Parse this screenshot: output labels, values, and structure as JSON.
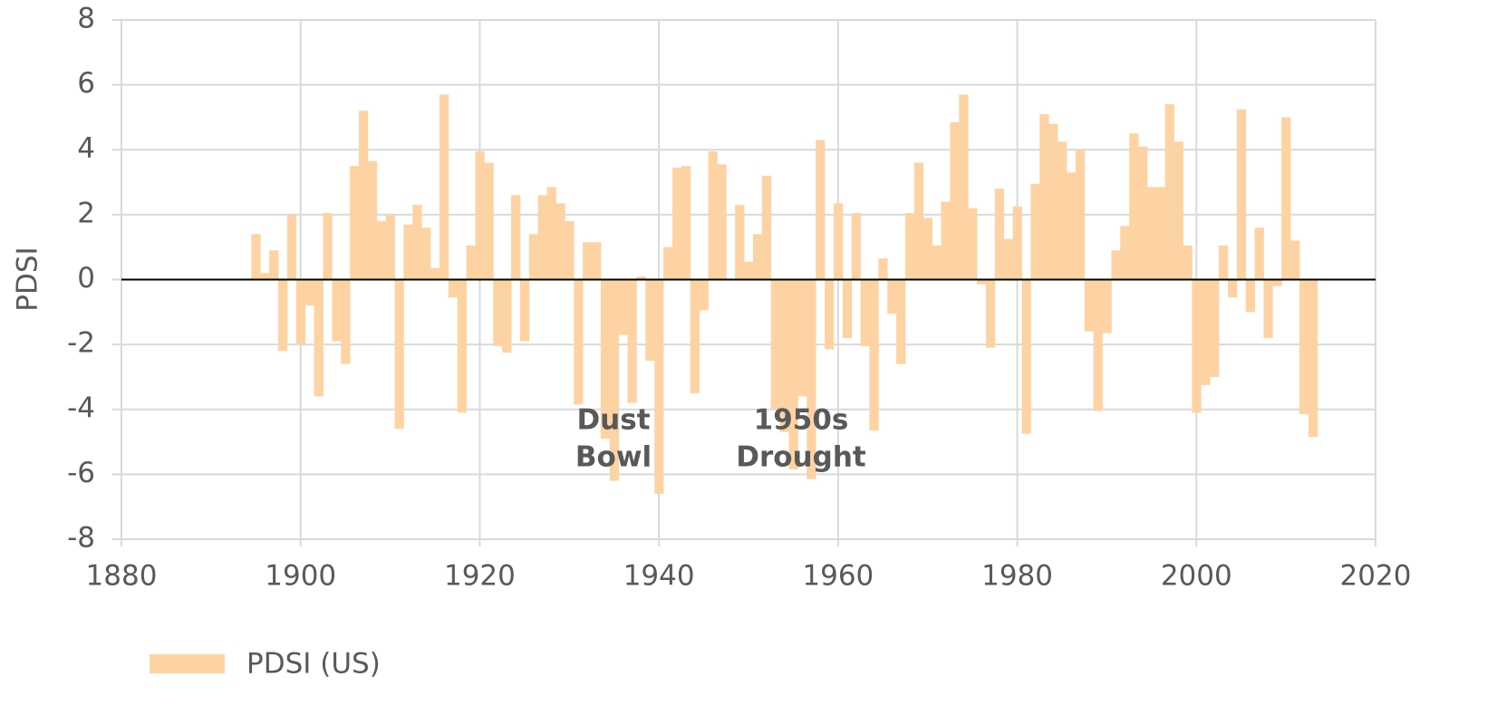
{
  "chart_data": {
    "type": "bar",
    "y_label": "PDSI",
    "annotations": [
      [
        "Dust",
        "Bowl"
      ],
      [
        "1950s",
        "Drought"
      ]
    ],
    "series": [
      {
        "name": "PDSI (US)",
        "color": "#fed3a3",
        "x": [
          1895,
          1896,
          1897,
          1898,
          1899,
          1900,
          1901,
          1902,
          1903,
          1904,
          1905,
          1906,
          1907,
          1908,
          1909,
          1910,
          1911,
          1912,
          1913,
          1914,
          1915,
          1916,
          1917,
          1918,
          1919,
          1920,
          1921,
          1922,
          1923,
          1924,
          1925,
          1926,
          1927,
          1928,
          1929,
          1930,
          1931,
          1932,
          1933,
          1934,
          1935,
          1936,
          1937,
          1938,
          1939,
          1940,
          1941,
          1942,
          1943,
          1944,
          1945,
          1946,
          1947,
          1948,
          1949,
          1950,
          1951,
          1952,
          1953,
          1954,
          1955,
          1956,
          1957,
          1958,
          1959,
          1960,
          1961,
          1962,
          1963,
          1964,
          1965,
          1966,
          1967,
          1968,
          1969,
          1970,
          1971,
          1972,
          1973,
          1974,
          1975,
          1976,
          1977,
          1978,
          1979,
          1980,
          1981,
          1982,
          1983,
          1984,
          1985,
          1986,
          1987,
          1988,
          1989,
          1990,
          1991,
          1992,
          1993,
          1994,
          1995,
          1996,
          1997,
          1998,
          1999,
          2000,
          2001,
          2002,
          2003,
          2004,
          2005,
          2006,
          2007,
          2008,
          2009,
          2010,
          2011,
          2012,
          2013
        ],
        "values": [
          1.4,
          0.2,
          0.9,
          -2.2,
          2.0,
          -2.0,
          -0.8,
          -3.6,
          2.05,
          -1.9,
          -2.6,
          3.5,
          5.2,
          3.65,
          1.8,
          2.0,
          -4.6,
          1.7,
          2.3,
          1.6,
          0.35,
          5.7,
          -0.55,
          -4.1,
          1.05,
          3.95,
          3.6,
          -2.05,
          -2.25,
          2.6,
          -1.9,
          1.4,
          2.6,
          2.85,
          2.35,
          1.8,
          -3.85,
          1.15,
          1.15,
          -4.9,
          -6.2,
          -1.7,
          -3.8,
          0.1,
          -2.5,
          -6.6,
          1.0,
          3.45,
          3.5,
          -3.5,
          -0.95,
          3.95,
          3.55,
          0,
          2.3,
          0.55,
          1.4,
          3.2,
          -4.0,
          -4.7,
          -5.85,
          -3.6,
          -6.15,
          4.3,
          -2.15,
          2.35,
          -1.8,
          2.05,
          -2.05,
          -4.65,
          0.65,
          -1.05,
          -2.6,
          2.05,
          3.6,
          1.9,
          1.05,
          2.4,
          4.85,
          5.7,
          2.2,
          -0.15,
          -2.1,
          2.8,
          1.25,
          2.25,
          -4.75,
          2.95,
          5.1,
          4.8,
          4.25,
          3.3,
          4.0,
          -1.6,
          -4.05,
          -1.65,
          0.9,
          1.65,
          4.5,
          4.1,
          2.85,
          2.85,
          5.4,
          4.25,
          1.05,
          -4.1,
          -3.25,
          -3.0,
          1.05,
          -0.55,
          5.25,
          -1.0,
          1.6,
          -1.8,
          -0.2,
          5.0,
          1.2,
          -4.15,
          -4.85
        ]
      }
    ],
    "xlim": [
      1880,
      2020
    ],
    "xticks": [
      1880,
      1900,
      1920,
      1940,
      1960,
      1980,
      2000,
      2020
    ],
    "ylim": [
      -8,
      8
    ],
    "yticks": [
      -8,
      -6,
      -4,
      -2,
      0,
      2,
      4,
      6,
      8
    ],
    "grid": true,
    "legend": "bottom-left"
  }
}
